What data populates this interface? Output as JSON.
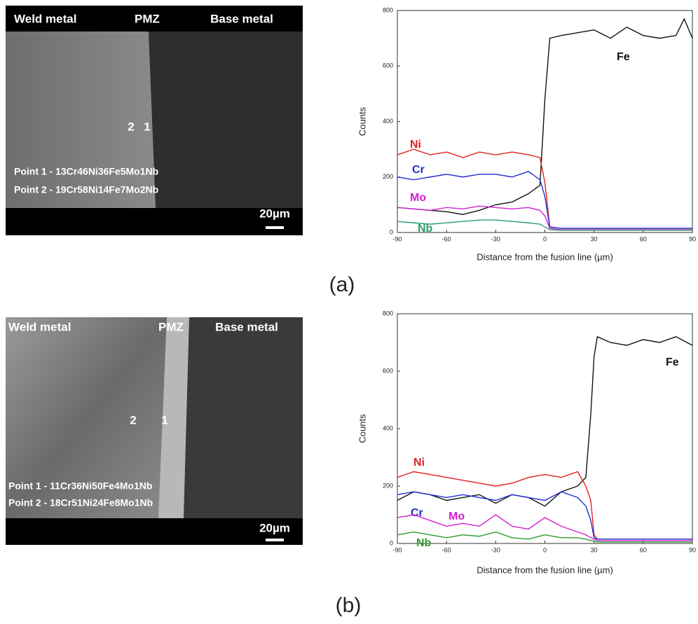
{
  "figure": {
    "panels": [
      {
        "label": "(a)",
        "regions": [
          "Weld metal",
          "PMZ",
          "Base metal"
        ],
        "markers": [
          "2",
          "1"
        ],
        "points": [
          "Point 1 - 13Cr46Ni36Fe5Mo1Nb",
          "Point 2 - 19Cr58Ni14Fe7Mo2Nb"
        ],
        "scale_bar": "20µm"
      },
      {
        "label": "(b)",
        "regions": [
          "Weld metal",
          "PMZ",
          "Base metal"
        ],
        "markers": [
          "2",
          "1"
        ],
        "points": [
          "Point 1 - 11Cr36Ni50Fe4Mo1Nb",
          "Point 2 - 18Cr51Ni24Fe8Mo1Nb"
        ],
        "scale_bar": "20µm"
      }
    ]
  },
  "chart_data": [
    {
      "type": "line",
      "x_label": "Distance from the fusion line (µm)",
      "y_label": "Counts",
      "xlim": [
        -90,
        90
      ],
      "xticks": [
        -90,
        -60,
        -30,
        0,
        30,
        60,
        90
      ],
      "ylim": [
        0,
        800
      ],
      "yticks": [
        0,
        200,
        400,
        600,
        800
      ],
      "grid": false,
      "x": [
        -90,
        -80,
        -70,
        -60,
        -50,
        -40,
        -30,
        -20,
        -10,
        -3,
        0,
        3,
        10,
        20,
        30,
        40,
        50,
        60,
        70,
        80,
        85,
        90
      ],
      "series": [
        {
          "name": "Fe",
          "color": "#111111",
          "values": [
            90,
            85,
            80,
            75,
            65,
            80,
            100,
            110,
            140,
            170,
            480,
            700,
            710,
            720,
            730,
            700,
            740,
            710,
            700,
            710,
            770,
            700
          ]
        },
        {
          "name": "Ni",
          "color": "#e02020",
          "values": [
            280,
            300,
            280,
            290,
            270,
            290,
            280,
            290,
            280,
            270,
            180,
            20,
            15,
            15,
            15,
            15,
            15,
            15,
            15,
            15,
            15,
            15
          ]
        },
        {
          "name": "Cr",
          "color": "#1f2fd0",
          "values": [
            200,
            190,
            200,
            210,
            200,
            210,
            210,
            200,
            220,
            190,
            130,
            20,
            15,
            15,
            15,
            15,
            15,
            15,
            15,
            15,
            15,
            15
          ]
        },
        {
          "name": "Mo",
          "color": "#d020d0",
          "values": [
            90,
            85,
            80,
            90,
            85,
            95,
            90,
            85,
            90,
            80,
            60,
            15,
            10,
            10,
            10,
            10,
            10,
            10,
            10,
            10,
            10,
            10
          ]
        },
        {
          "name": "Nb",
          "color": "#2a9d6a",
          "values": [
            40,
            35,
            30,
            35,
            40,
            45,
            45,
            40,
            35,
            30,
            20,
            10,
            8,
            8,
            8,
            8,
            8,
            8,
            8,
            8,
            8,
            8
          ]
        }
      ]
    },
    {
      "type": "line",
      "x_label": "Distance from the fusion line (µm)",
      "y_label": "Counts",
      "xlim": [
        -90,
        90
      ],
      "xticks": [
        -90,
        -60,
        -30,
        0,
        30,
        60,
        90
      ],
      "ylim": [
        0,
        800
      ],
      "yticks": [
        0,
        200,
        400,
        600,
        800
      ],
      "grid": false,
      "x": [
        -90,
        -80,
        -70,
        -60,
        -50,
        -40,
        -30,
        -20,
        -10,
        0,
        10,
        20,
        25,
        28,
        30,
        32,
        40,
        50,
        60,
        70,
        80,
        90
      ],
      "series": [
        {
          "name": "Fe",
          "color": "#111111",
          "values": [
            150,
            180,
            170,
            150,
            160,
            170,
            140,
            170,
            160,
            130,
            180,
            200,
            230,
            450,
            650,
            720,
            700,
            690,
            710,
            700,
            720,
            690
          ]
        },
        {
          "name": "Ni",
          "color": "#e02020",
          "values": [
            230,
            250,
            240,
            230,
            220,
            210,
            200,
            210,
            230,
            240,
            230,
            250,
            200,
            150,
            30,
            15,
            15,
            15,
            15,
            15,
            15,
            15
          ]
        },
        {
          "name": "Cr",
          "color": "#1f2fd0",
          "values": [
            170,
            180,
            170,
            160,
            170,
            160,
            150,
            170,
            160,
            150,
            180,
            160,
            130,
            80,
            20,
            15,
            15,
            15,
            15,
            15,
            15,
            15
          ]
        },
        {
          "name": "Mo",
          "color": "#d020d0",
          "values": [
            90,
            100,
            80,
            60,
            70,
            60,
            100,
            60,
            50,
            90,
            60,
            40,
            30,
            20,
            15,
            10,
            10,
            10,
            10,
            10,
            10,
            10
          ]
        },
        {
          "name": "Nb",
          "color": "#2e9b2e",
          "values": [
            30,
            40,
            30,
            20,
            30,
            25,
            40,
            20,
            15,
            30,
            20,
            20,
            15,
            10,
            8,
            5,
            5,
            5,
            5,
            5,
            5,
            5
          ]
        }
      ]
    }
  ]
}
